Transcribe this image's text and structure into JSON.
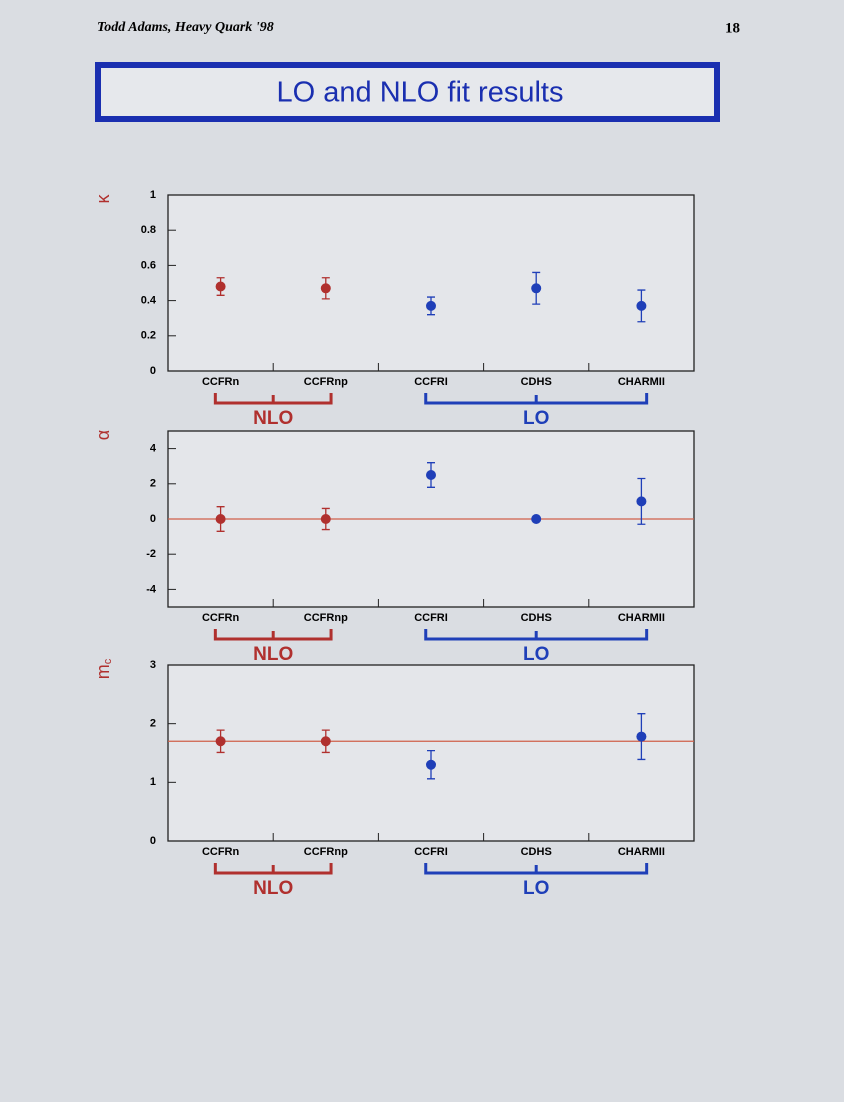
{
  "header": {
    "author": "Todd Adams, Heavy Quark '98",
    "page": "18",
    "title": "LO and NLO fit results"
  },
  "chart_data": [
    {
      "type": "errorbar",
      "y_label": "κ",
      "categories": [
        "CCFRn",
        "CCFRnp",
        "CCFRI",
        "CDHS",
        "CHARMII"
      ],
      "values": [
        0.48,
        0.47,
        0.37,
        0.47,
        0.37
      ],
      "errors": [
        0.05,
        0.06,
        0.05,
        0.09,
        0.09
      ],
      "groups": [
        {
          "label": "NLO",
          "color": "#b0302e",
          "count": 2
        },
        {
          "label": "LO",
          "color": "#1f3fb8",
          "count": 3
        }
      ],
      "ylim": [
        0,
        1
      ],
      "yticks": [
        0,
        0.2,
        0.4,
        0.6,
        0.8,
        1
      ]
    },
    {
      "type": "errorbar",
      "y_label": "α",
      "categories": [
        "CCFRn",
        "CCFRnp",
        "CCFRI",
        "CDHS",
        "CHARMII"
      ],
      "values": [
        0,
        0,
        2.5,
        0,
        1.0
      ],
      "errors": [
        0.7,
        0.6,
        0.7,
        0.1,
        1.3
      ],
      "reference": 0,
      "reference_color": "#d0604a",
      "groups": [
        {
          "label": "NLO",
          "color": "#b0302e",
          "count": 2
        },
        {
          "label": "LO",
          "color": "#1f3fb8",
          "count": 3
        }
      ],
      "ylim": [
        -5,
        5
      ],
      "yticks": [
        -4,
        -2,
        0,
        2,
        4
      ]
    },
    {
      "type": "errorbar",
      "y_label": "m",
      "y_label_sub": "c",
      "categories": [
        "CCFRn",
        "CCFRnp",
        "CCFRI",
        "CDHS",
        "CHARMII"
      ],
      "values": [
        1.7,
        1.7,
        1.3,
        null,
        1.78
      ],
      "errors": [
        0.19,
        0.19,
        0.24,
        null,
        0.39
      ],
      "reference": 1.7,
      "reference_color": "#d0604a",
      "groups": [
        {
          "label": "NLO",
          "color": "#b0302e",
          "count": 2
        },
        {
          "label": "LO",
          "color": "#1f3fb8",
          "count": 3
        }
      ],
      "ylim": [
        0,
        3
      ],
      "yticks": [
        0,
        1,
        2,
        3
      ]
    }
  ]
}
